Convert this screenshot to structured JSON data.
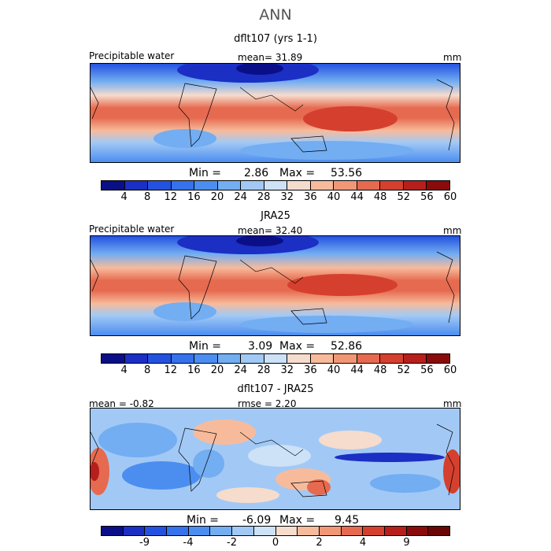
{
  "title": "ANN",
  "panels": [
    {
      "title": "dflt107 (yrs 1-1)",
      "left": "Precipitable water",
      "center": "mean=  31.89",
      "unit": "mm",
      "min_label": "Min =",
      "min_value": "2.86",
      "max_label": "Max =",
      "max_value": "53.56"
    },
    {
      "title": "JRA25",
      "left": "Precipitable water",
      "center": "mean=  32.40",
      "unit": "mm",
      "min_label": "Min =",
      "min_value": "3.09",
      "max_label": "Max =",
      "max_value": "52.86"
    },
    {
      "title": "dflt107 - JRA25",
      "left": "mean =  -0.82",
      "center": "rmse =   2.20",
      "unit": "mm",
      "min_label": "Min =",
      "min_value": "-6.09",
      "max_label": "Max =",
      "max_value": "9.45"
    }
  ],
  "chart_data": {
    "type": "heatmap",
    "field": "Precipitable water (annual mean, global map)",
    "unit": "mm",
    "colorbars": [
      {
        "ticks": [
          "4",
          "8",
          "12",
          "16",
          "20",
          "24",
          "28",
          "32",
          "36",
          "40",
          "44",
          "48",
          "52",
          "56",
          "60"
        ],
        "colors": [
          "#0a0f87",
          "#1b2fc4",
          "#2452e0",
          "#3572ec",
          "#4b8ef0",
          "#73adf2",
          "#a2c9f5",
          "#cde1f7",
          "#f6dccd",
          "#f7bb9c",
          "#f19776",
          "#e66a4f",
          "#d5402e",
          "#b71f1c",
          "#8a0b0b"
        ]
      },
      {
        "ticks": [
          "4",
          "8",
          "12",
          "16",
          "20",
          "24",
          "28",
          "32",
          "36",
          "40",
          "44",
          "48",
          "52",
          "56",
          "60"
        ],
        "colors": [
          "#0a0f87",
          "#1b2fc4",
          "#2452e0",
          "#3572ec",
          "#4b8ef0",
          "#73adf2",
          "#a2c9f5",
          "#cde1f7",
          "#f6dccd",
          "#f7bb9c",
          "#f19776",
          "#e66a4f",
          "#d5402e",
          "#b71f1c",
          "#8a0b0b"
        ]
      },
      {
        "ticks": [
          "-9",
          "-4",
          "-2",
          "0",
          "2",
          "4",
          "9"
        ],
        "colors": [
          "#0a0f87",
          "#1b2fc4",
          "#2452e0",
          "#3572ec",
          "#4b8ef0",
          "#73adf2",
          "#a2c9f5",
          "#cde1f7",
          "#f6dccd",
          "#f7bb9c",
          "#f19776",
          "#e66a4f",
          "#d5402e",
          "#b71f1c",
          "#8a0b0b",
          "#6a0606"
        ]
      }
    ]
  }
}
